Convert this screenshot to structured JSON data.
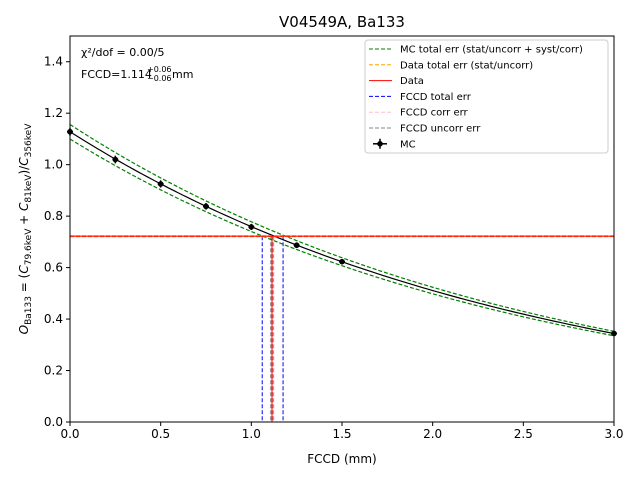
{
  "chart_data": {
    "type": "line",
    "title": "V04549A, Ba133",
    "xlabel": "FCCD (mm)",
    "ylabel": "O_Ba133 = (C_79.6keV + C_81keV)/C_356keV",
    "xlim": [
      0.0,
      3.0
    ],
    "ylim": [
      0.0,
      1.5
    ],
    "x_ticks": [
      "0.0",
      "0.5",
      "1.0",
      "1.5",
      "2.0",
      "2.5",
      "3.0"
    ],
    "y_ticks": [
      "0.0",
      "0.2",
      "0.4",
      "0.6",
      "0.8",
      "1.0",
      "1.2",
      "1.4"
    ],
    "grid": false,
    "legend_position": "top-right",
    "annotations": {
      "chi2_label": "χ²/dof = 0.00/5",
      "fccd_label": "FCCD=1.114",
      "fccd_err_plus": "+0.06",
      "fccd_err_minus": "−0.06",
      "fccd_unit": "mm"
    },
    "legend": [
      {
        "label": "MC total err (stat/uncorr + syst/corr)",
        "color": "#008000",
        "style": "dashed"
      },
      {
        "label": "Data total err (stat/uncorr)",
        "color": "#ffa500",
        "style": "dashed"
      },
      {
        "label": "Data",
        "color": "#ff0000",
        "style": "solid"
      },
      {
        "label": "FCCD total err",
        "color": "#0000ff",
        "style": "dashed"
      },
      {
        "label": "FCCD corr err",
        "color": "#ffc0cb",
        "style": "dashed"
      },
      {
        "label": "FCCD uncorr err",
        "color": "#808080",
        "style": "dashed"
      },
      {
        "label": "MC",
        "color": "#000000",
        "style": "errorbar"
      }
    ],
    "mc_points": {
      "x": [
        0.0,
        0.25,
        0.5,
        0.75,
        1.0,
        1.25,
        1.5,
        3.0
      ],
      "y": [
        1.128,
        1.02,
        0.925,
        0.838,
        0.758,
        0.687,
        0.623,
        0.344
      ],
      "yerr": [
        0.015,
        0.015,
        0.014,
        0.013,
        0.012,
        0.011,
        0.01,
        0.006
      ]
    },
    "mc_fit": {
      "amplitude": 1.128,
      "decay": 0.396
    },
    "mc_band": {
      "relative_width": 0.025,
      "color": "#008000"
    },
    "data": {
      "value": 0.722,
      "error": 0.002,
      "color": "#ff0000",
      "err_color": "#ffa500"
    },
    "fccd": {
      "value": 1.114,
      "total_err": [
        1.06,
        1.175
      ],
      "corr_err": [
        1.105,
        1.124
      ],
      "uncorr_err": [
        1.108,
        1.12
      ]
    }
  }
}
